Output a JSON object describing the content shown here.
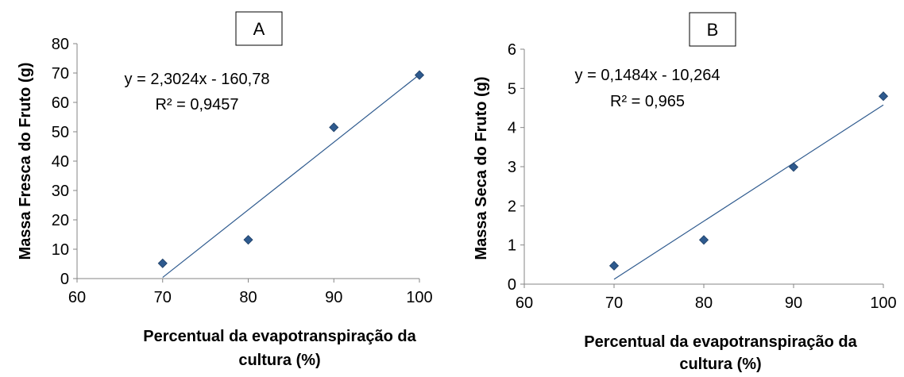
{
  "chart_data": [
    {
      "type": "scatter",
      "panel_label": "A",
      "xlabel": [
        "Percentual da evapotranspiração da",
        "cultura (%)"
      ],
      "ylabel": "Massa Fresca do Fruto (g)",
      "xlim": [
        60,
        100
      ],
      "ylim": [
        0,
        80
      ],
      "xticks": [
        "60",
        "70",
        "80",
        "90",
        "100"
      ],
      "yticks": [
        "0",
        "10",
        "20",
        "30",
        "40",
        "50",
        "60",
        "70",
        "80"
      ],
      "x": [
        70,
        80,
        90,
        100
      ],
      "y": [
        5.2,
        13.2,
        51.5,
        69.3
      ],
      "trendline": {
        "slope": 2.3024,
        "intercept": -160.78,
        "x_range": [
          70,
          100
        ]
      },
      "equation": "y = 2,3024x - 160,78",
      "r2": "R² = 0,9457",
      "grid": false,
      "marker_color": "#2e5a8e",
      "line_color": "#2e5a8e"
    },
    {
      "type": "scatter",
      "panel_label": "B",
      "xlabel": [
        "Percentual da evapotranspiração da",
        "cultura (%)"
      ],
      "ylabel": "Massa Seca do Fruto (g)",
      "xlim": [
        60,
        100
      ],
      "ylim": [
        0,
        6
      ],
      "xticks": [
        "60",
        "70",
        "80",
        "90",
        "100"
      ],
      "yticks": [
        "0",
        "1",
        "2",
        "3",
        "4",
        "5",
        "6"
      ],
      "x": [
        70,
        80,
        90,
        100
      ],
      "y": [
        0.47,
        1.13,
        2.99,
        4.8
      ],
      "trendline": {
        "slope": 0.1484,
        "intercept": -10.264,
        "x_range": [
          70,
          100
        ]
      },
      "equation": "y = 0,1484x - 10,264",
      "r2": "R² = 0,965",
      "grid": false,
      "marker_color": "#2e5a8e",
      "line_color": "#2e5a8e"
    }
  ]
}
